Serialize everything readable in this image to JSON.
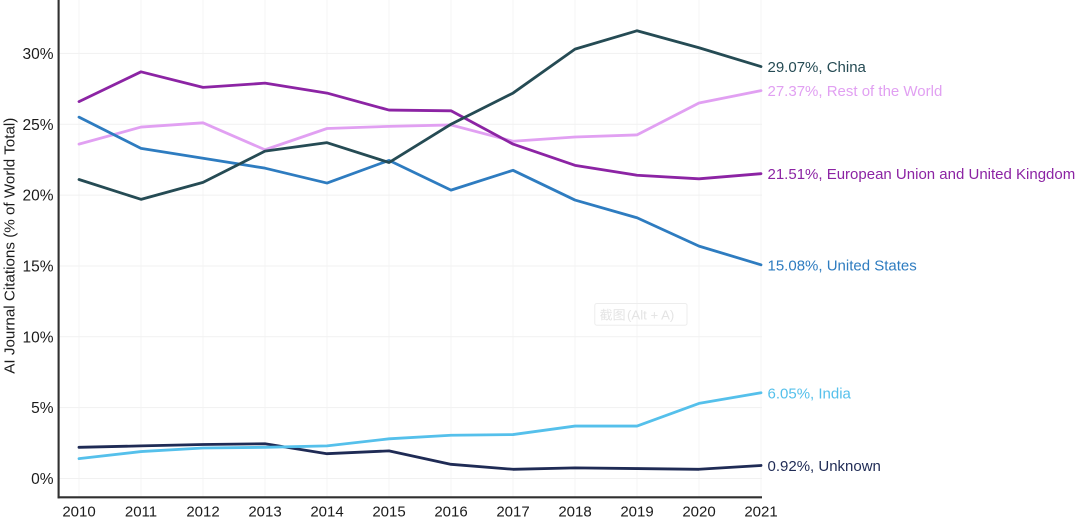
{
  "colors": {
    "background": "#ffffff",
    "axis_line": "#303030",
    "axis_text": "#1b1b1b",
    "grid_horizontal": "#f1f1f1",
    "grid_vertical": "#f5f5f5",
    "watermark_border": "#ededed",
    "watermark_text": "#e4e4e4"
  },
  "watermark": {
    "label": "截图(Alt + A)",
    "text_cjk": "截图",
    "text_latin": "(Alt + A)"
  },
  "chart_data": {
    "type": "line",
    "title": "",
    "xlabel": "",
    "ylabel": "AI Journal Citations (% of World Total)",
    "x": [
      2010,
      2011,
      2012,
      2013,
      2014,
      2015,
      2016,
      2017,
      2018,
      2019,
      2020,
      2021
    ],
    "x_tick_labels": [
      "2010",
      "2011",
      "2012",
      "2013",
      "2014",
      "2015",
      "2016",
      "2017",
      "2018",
      "2019",
      "2020",
      "2021"
    ],
    "y_ticks": [
      0,
      5,
      10,
      15,
      20,
      25,
      30
    ],
    "y_tick_labels": [
      "0%",
      "5%",
      "10%",
      "15%",
      "20%",
      "25%",
      "30%"
    ],
    "ylim": [
      -1.35,
      33.8
    ],
    "grid": true,
    "legend_position": "right-end-of-line-labels",
    "series": [
      {
        "name": "China",
        "color": "#254b54",
        "end_label": "29.07%, China",
        "end_value": 29.07,
        "values": [
          21.1,
          19.7,
          20.9,
          23.1,
          23.7,
          22.3,
          25.0,
          27.2,
          30.3,
          31.6,
          30.4,
          29.07
        ]
      },
      {
        "name": "Rest of the World",
        "color": "#e1a0f2",
        "end_label": "27.37%, Rest of the World",
        "end_value": 27.37,
        "values": [
          23.6,
          24.8,
          25.1,
          23.2,
          24.7,
          24.85,
          24.95,
          23.8,
          24.1,
          24.25,
          26.5,
          27.37
        ]
      },
      {
        "name": "European Union and United Kingdom",
        "color": "#8c24a4",
        "end_label": "21.51%, European Union and United Kingdom",
        "end_value": 21.51,
        "values": [
          26.6,
          28.7,
          27.6,
          27.9,
          27.2,
          26.0,
          25.95,
          23.6,
          22.1,
          21.4,
          21.15,
          21.51
        ]
      },
      {
        "name": "United States",
        "color": "#2e7cc0",
        "end_label": "15.08%, United States",
        "end_value": 15.08,
        "values": [
          25.5,
          23.3,
          22.6,
          21.9,
          20.85,
          22.45,
          20.35,
          21.75,
          19.65,
          18.4,
          16.4,
          15.08
        ]
      },
      {
        "name": "India",
        "color": "#55c0eb",
        "end_label": "6.05%, India",
        "end_value": 6.05,
        "values": [
          1.4,
          1.9,
          2.15,
          2.2,
          2.3,
          2.8,
          3.05,
          3.1,
          3.7,
          3.7,
          5.3,
          6.05
        ]
      },
      {
        "name": "Unknown",
        "color": "#1f2b55",
        "end_label": "0.92%, Unknown",
        "end_value": 0.92,
        "values": [
          2.2,
          2.3,
          2.4,
          2.45,
          1.75,
          1.95,
          1.0,
          0.65,
          0.75,
          0.7,
          0.65,
          0.92
        ]
      }
    ],
    "draw_order": [
      "Rest of the World",
      "European Union and United Kingdom",
      "United States",
      "Unknown",
      "India",
      "China"
    ]
  }
}
